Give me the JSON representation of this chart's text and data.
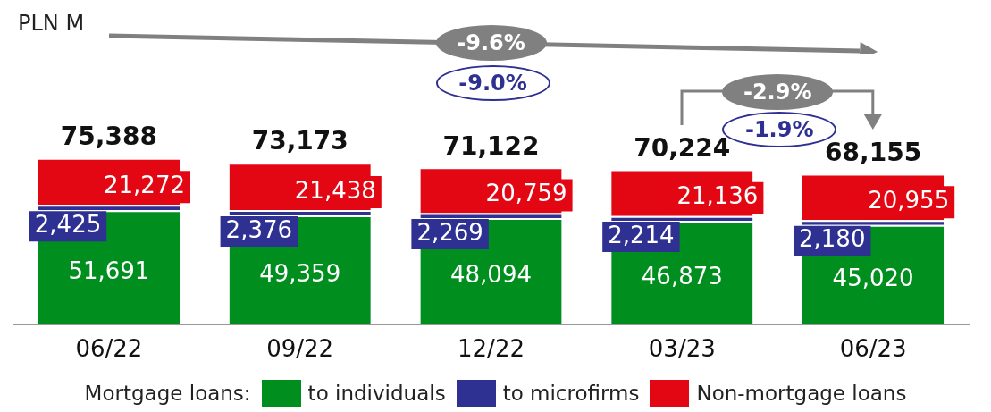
{
  "chart_data": {
    "type": "bar",
    "stacked": true,
    "legend_title": "Mortgage loans:",
    "legend": "bottom",
    "categories": [
      "06/22",
      "09/22",
      "12/22",
      "03/23",
      "06/23"
    ],
    "series": [
      {
        "name": "to individuals",
        "color": "#008f1f",
        "values": [
          51691,
          49359,
          48094,
          46873,
          45020
        ],
        "value_labels": [
          "51,691",
          "49,359",
          "48,094",
          "46,873",
          "45,020"
        ]
      },
      {
        "name": "to microfirms",
        "color": "#2e3092",
        "values": [
          2425,
          2376,
          2269,
          2214,
          2180
        ],
        "value_labels": [
          "2,425",
          "2,376",
          "2,269",
          "2,214",
          "2,180"
        ]
      },
      {
        "name": "Non-mortgage loans",
        "color": "#e30613",
        "values": [
          21272,
          21438,
          20759,
          21136,
          20955
        ],
        "value_labels": [
          "21,272",
          "21,438",
          "20,759",
          "21,136",
          "20,955"
        ]
      }
    ],
    "totals": [
      "75,388",
      "73,173",
      "71,122",
      "70,224",
      "68,155"
    ],
    "annotations": [
      "PLN M",
      "-9.6%",
      "-9.0%",
      "-2.9%",
      "-1.9%"
    ]
  }
}
